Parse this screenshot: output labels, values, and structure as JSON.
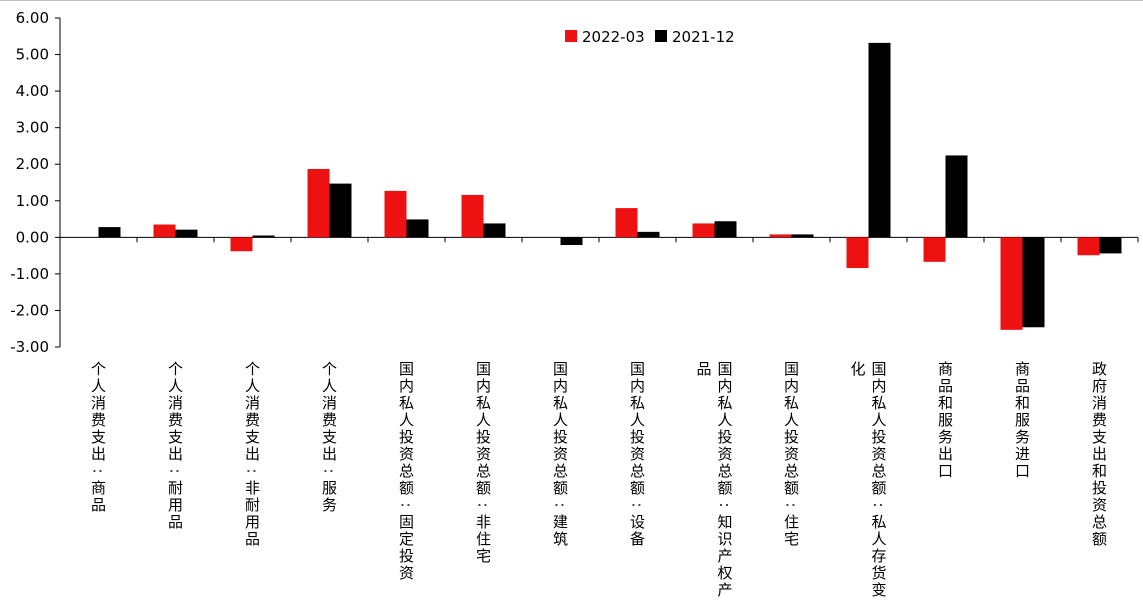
{
  "chart_data": {
    "type": "bar",
    "title": "",
    "xlabel": "",
    "ylabel": "",
    "ylim": [
      -3,
      6
    ],
    "yticks": [
      "6.00",
      "5.00",
      "4.00",
      "3.00",
      "2.00",
      "1.00",
      "0.00",
      "-1.00",
      "-2.00",
      "-3.00"
    ],
    "grid": false,
    "legend_position": "top-center",
    "categories": [
      "个人消费支出:商品",
      "个人消费支出:耐用品",
      "个人消费支出:非耐用品",
      "个人消费支出:服务",
      "国内私人投资总额:固定投资",
      "国内私人投资总额:非住宅",
      "国内私人投资总额:建筑",
      "国内私人投资总额:设备",
      "国内私人投资总额:知识产权产品",
      "国内私人投资总额:住宅",
      "国内私人投资总额:私人存货变化",
      "商品和服务出口",
      "商品和服务进口",
      "政府消费支出和投资总额"
    ],
    "series": [
      {
        "name": "2022-03",
        "color": "#ee1111",
        "values": [
          0.0,
          0.35,
          -0.38,
          1.87,
          1.27,
          1.16,
          0.0,
          0.8,
          0.38,
          0.08,
          -0.84,
          -0.67,
          -2.53,
          -0.49
        ]
      },
      {
        "name": "2021-12",
        "color": "#000000",
        "values": [
          0.28,
          0.21,
          0.05,
          1.47,
          0.49,
          0.38,
          -0.21,
          0.15,
          0.44,
          0.08,
          5.32,
          2.24,
          -2.46,
          -0.44
        ]
      }
    ]
  }
}
